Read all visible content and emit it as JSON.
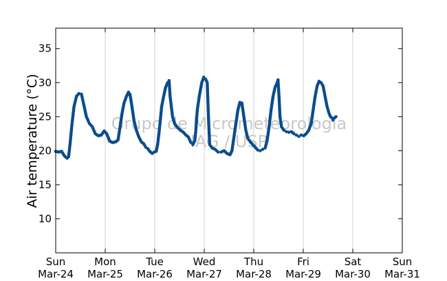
{
  "chart_data": {
    "type": "scatter",
    "ylabel": "Air temperature (°C)",
    "xlabel": "",
    "ylim": [
      5,
      38
    ],
    "yticks": [
      10,
      15,
      20,
      25,
      30,
      35
    ],
    "x_range_days": [
      0,
      7
    ],
    "x_ticks": [
      {
        "day": 0,
        "weekday": "Sun",
        "date": "Mar-24"
      },
      {
        "day": 1,
        "weekday": "Mon",
        "date": "Mar-25"
      },
      {
        "day": 2,
        "weekday": "Tue",
        "date": "Mar-26"
      },
      {
        "day": 3,
        "weekday": "Wed",
        "date": "Mar-27"
      },
      {
        "day": 4,
        "weekday": "Thu",
        "date": "Mar-28"
      },
      {
        "day": 5,
        "weekday": "Fri",
        "date": "Mar-29"
      },
      {
        "day": 6,
        "weekday": "Sat",
        "date": "Mar-30"
      },
      {
        "day": 7,
        "weekday": "Sun",
        "date": "Mar-31"
      }
    ],
    "grid": "vertical",
    "marker_color": "#0b4c8c",
    "watermark": [
      "Grupo de Micrometeorologia",
      "IAG / USP"
    ],
    "series": [
      {
        "points": [
          [
            0.0,
            19.9
          ],
          [
            0.06,
            19.8
          ],
          [
            0.12,
            19.9
          ],
          [
            0.18,
            19.2
          ],
          [
            0.23,
            18.9
          ],
          [
            0.26,
            19.1
          ],
          [
            0.29,
            21.0
          ],
          [
            0.33,
            24.0
          ],
          [
            0.37,
            26.5
          ],
          [
            0.42,
            28.0
          ],
          [
            0.47,
            28.4
          ],
          [
            0.52,
            28.3
          ],
          [
            0.56,
            27.0
          ],
          [
            0.62,
            25.0
          ],
          [
            0.68,
            24.0
          ],
          [
            0.74,
            23.5
          ],
          [
            0.8,
            22.5
          ],
          [
            0.86,
            22.2
          ],
          [
            0.92,
            22.3
          ],
          [
            0.98,
            22.9
          ],
          [
            1.03,
            22.5
          ],
          [
            1.09,
            21.4
          ],
          [
            1.15,
            21.2
          ],
          [
            1.21,
            21.3
          ],
          [
            1.26,
            21.6
          ],
          [
            1.3,
            23.5
          ],
          [
            1.34,
            25.5
          ],
          [
            1.38,
            27.0
          ],
          [
            1.43,
            28.0
          ],
          [
            1.47,
            28.6
          ],
          [
            1.5,
            28.3
          ],
          [
            1.54,
            26.5
          ],
          [
            1.58,
            24.5
          ],
          [
            1.63,
            23.0
          ],
          [
            1.68,
            22.0
          ],
          [
            1.73,
            21.3
          ],
          [
            1.78,
            21.0
          ],
          [
            1.82,
            20.5
          ],
          [
            1.86,
            20.3
          ],
          [
            1.9,
            19.9
          ],
          [
            1.95,
            19.6
          ],
          [
            1.99,
            19.8
          ],
          [
            2.03,
            19.9
          ],
          [
            2.06,
            21.0
          ],
          [
            2.1,
            23.5
          ],
          [
            2.14,
            26.5
          ],
          [
            2.18,
            28.0
          ],
          [
            2.22,
            29.3
          ],
          [
            2.26,
            30.0
          ],
          [
            2.29,
            30.3
          ],
          [
            2.31,
            28.0
          ],
          [
            2.36,
            25.0
          ],
          [
            2.4,
            24.0
          ],
          [
            2.46,
            23.4
          ],
          [
            2.52,
            23.0
          ],
          [
            2.58,
            22.7
          ],
          [
            2.63,
            22.3
          ],
          [
            2.68,
            22.0
          ],
          [
            2.73,
            21.2
          ],
          [
            2.77,
            20.9
          ],
          [
            2.81,
            21.5
          ],
          [
            2.83,
            23.0
          ],
          [
            2.86,
            26.0
          ],
          [
            2.9,
            28.0
          ],
          [
            2.95,
            30.0
          ],
          [
            2.99,
            30.8
          ],
          [
            3.03,
            30.5
          ],
          [
            3.06,
            30.0
          ],
          [
            3.09,
            24.0
          ],
          [
            3.11,
            20.9
          ],
          [
            3.16,
            20.4
          ],
          [
            3.22,
            20.2
          ],
          [
            3.28,
            19.8
          ],
          [
            3.34,
            19.8
          ],
          [
            3.4,
            20.0
          ],
          [
            3.46,
            19.6
          ],
          [
            3.52,
            19.4
          ],
          [
            3.56,
            20.0
          ],
          [
            3.6,
            22.0
          ],
          [
            3.64,
            24.0
          ],
          [
            3.68,
            26.0
          ],
          [
            3.72,
            27.1
          ],
          [
            3.76,
            27.0
          ],
          [
            3.8,
            25.0
          ],
          [
            3.84,
            23.0
          ],
          [
            3.88,
            21.8
          ],
          [
            3.93,
            21.3
          ],
          [
            3.98,
            20.9
          ],
          [
            4.03,
            20.5
          ],
          [
            4.08,
            20.1
          ],
          [
            4.13,
            20.0
          ],
          [
            4.18,
            20.2
          ],
          [
            4.23,
            20.4
          ],
          [
            4.27,
            21.5
          ],
          [
            4.31,
            23.5
          ],
          [
            4.35,
            26.0
          ],
          [
            4.39,
            28.0
          ],
          [
            4.43,
            29.3
          ],
          [
            4.46,
            29.8
          ],
          [
            4.49,
            30.4
          ],
          [
            4.51,
            28.0
          ],
          [
            4.53,
            25.0
          ],
          [
            4.56,
            23.5
          ],
          [
            4.61,
            23.0
          ],
          [
            4.66,
            22.8
          ],
          [
            4.71,
            22.7
          ],
          [
            4.76,
            22.8
          ],
          [
            4.81,
            22.5
          ],
          [
            4.86,
            22.3
          ],
          [
            4.91,
            22.1
          ],
          [
            4.96,
            22.3
          ],
          [
            5.01,
            22.2
          ],
          [
            5.06,
            22.5
          ],
          [
            5.11,
            23.0
          ],
          [
            5.16,
            24.0
          ],
          [
            5.2,
            26.0
          ],
          [
            5.24,
            28.0
          ],
          [
            5.28,
            29.5
          ],
          [
            5.32,
            30.2
          ],
          [
            5.36,
            30.0
          ],
          [
            5.4,
            29.5
          ],
          [
            5.44,
            28.0
          ],
          [
            5.48,
            26.5
          ],
          [
            5.52,
            25.5
          ],
          [
            5.55,
            25.0
          ],
          [
            5.58,
            24.8
          ],
          [
            5.6,
            24.5
          ],
          [
            5.63,
            24.8
          ],
          [
            5.66,
            25.0
          ]
        ]
      }
    ]
  }
}
